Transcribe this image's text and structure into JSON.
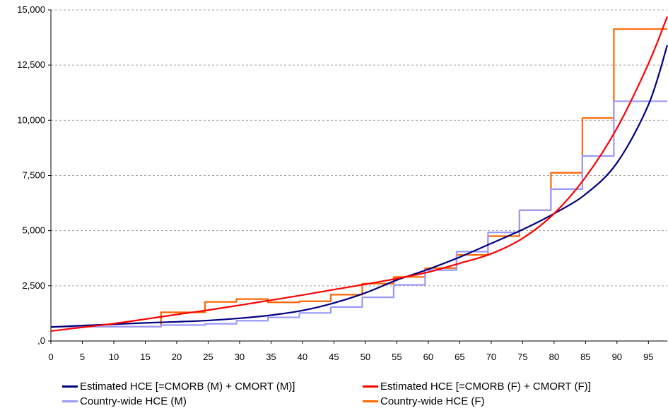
{
  "chart_data": {
    "type": "line",
    "title": "",
    "xlabel": "",
    "ylabel": "",
    "xlim": [
      0,
      98
    ],
    "ylim": [
      0,
      15000
    ],
    "x_ticks": [
      0,
      5,
      10,
      15,
      20,
      25,
      30,
      35,
      40,
      45,
      50,
      55,
      60,
      65,
      70,
      75,
      80,
      85,
      90,
      95
    ],
    "y_ticks": [
      0,
      2500,
      5000,
      7500,
      10000,
      12500,
      15000
    ],
    "y_tick_labels": [
      ",0",
      "2,500",
      "5,000",
      "7,500",
      "10,000",
      "12,500",
      "15,000"
    ],
    "grid": "horizontal dashed",
    "legend_position": "bottom",
    "series": [
      {
        "name": "Estimated HCE [=CMORB (M) + CMORT (M)]",
        "color": "#000080",
        "style": "smooth",
        "points": [
          [
            0,
            630
          ],
          [
            5,
            700
          ],
          [
            10,
            760
          ],
          [
            15,
            820
          ],
          [
            20,
            870
          ],
          [
            25,
            930
          ],
          [
            30,
            1030
          ],
          [
            35,
            1170
          ],
          [
            40,
            1380
          ],
          [
            45,
            1720
          ],
          [
            50,
            2180
          ],
          [
            55,
            2760
          ],
          [
            60,
            3250
          ],
          [
            65,
            3800
          ],
          [
            70,
            4420
          ],
          [
            75,
            5050
          ],
          [
            80,
            5770
          ],
          [
            85,
            6650
          ],
          [
            90,
            8070
          ],
          [
            95,
            10700
          ],
          [
            98,
            13400
          ]
        ]
      },
      {
        "name": "Estimated HCE [=CMORB (F) + CMORT (F)]",
        "color": "#ff0000",
        "style": "smooth",
        "points": [
          [
            0,
            450
          ],
          [
            5,
            620
          ],
          [
            10,
            790
          ],
          [
            15,
            990
          ],
          [
            20,
            1200
          ],
          [
            25,
            1400
          ],
          [
            30,
            1620
          ],
          [
            35,
            1850
          ],
          [
            40,
            2080
          ],
          [
            45,
            2330
          ],
          [
            50,
            2570
          ],
          [
            55,
            2830
          ],
          [
            60,
            3120
          ],
          [
            65,
            3520
          ],
          [
            70,
            3950
          ],
          [
            75,
            4650
          ],
          [
            80,
            5770
          ],
          [
            85,
            7420
          ],
          [
            90,
            9640
          ],
          [
            95,
            12560
          ],
          [
            98,
            14700
          ]
        ]
      },
      {
        "name": "Country-wide HCE (M)",
        "color": "#9999ff",
        "style": "step",
        "points": [
          [
            0,
            650
          ],
          [
            17.5,
            650
          ],
          [
            17.5,
            720
          ],
          [
            24.5,
            720
          ],
          [
            24.5,
            780
          ],
          [
            29.5,
            780
          ],
          [
            29.5,
            920
          ],
          [
            34.5,
            920
          ],
          [
            34.5,
            1070
          ],
          [
            39.5,
            1070
          ],
          [
            39.5,
            1270
          ],
          [
            44.5,
            1270
          ],
          [
            44.5,
            1540
          ],
          [
            49.5,
            1540
          ],
          [
            49.5,
            1980
          ],
          [
            54.5,
            1980
          ],
          [
            54.5,
            2540
          ],
          [
            59.5,
            2540
          ],
          [
            59.5,
            3210
          ],
          [
            64.5,
            3210
          ],
          [
            64.5,
            4050
          ],
          [
            69.5,
            4050
          ],
          [
            69.5,
            4920
          ],
          [
            74.5,
            4920
          ],
          [
            74.5,
            5920
          ],
          [
            79.5,
            5920
          ],
          [
            79.5,
            6880
          ],
          [
            84.5,
            6880
          ],
          [
            84.5,
            8380
          ],
          [
            89.5,
            8380
          ],
          [
            89.5,
            10860
          ],
          [
            98,
            10860
          ]
        ]
      },
      {
        "name": "Country-wide HCE (F)",
        "color": "#ff6600",
        "style": "step",
        "points": [
          [
            0,
            650
          ],
          [
            17.5,
            650
          ],
          [
            17.5,
            1300
          ],
          [
            24.5,
            1300
          ],
          [
            24.5,
            1770
          ],
          [
            29.5,
            1770
          ],
          [
            29.5,
            1900
          ],
          [
            34.5,
            1900
          ],
          [
            34.5,
            1750
          ],
          [
            39.5,
            1750
          ],
          [
            39.5,
            1800
          ],
          [
            44.5,
            1800
          ],
          [
            44.5,
            2100
          ],
          [
            49.5,
            2100
          ],
          [
            49.5,
            2600
          ],
          [
            54.5,
            2600
          ],
          [
            54.5,
            2900
          ],
          [
            59.5,
            2900
          ],
          [
            59.5,
            3300
          ],
          [
            64.5,
            3300
          ],
          [
            64.5,
            3900
          ],
          [
            69.5,
            3900
          ],
          [
            69.5,
            4750
          ],
          [
            74.5,
            4750
          ],
          [
            74.5,
            5920
          ],
          [
            79.5,
            5920
          ],
          [
            79.5,
            7620
          ],
          [
            84.5,
            7620
          ],
          [
            84.5,
            10100
          ],
          [
            89.5,
            10100
          ],
          [
            89.5,
            14130
          ],
          [
            98,
            14130
          ]
        ]
      }
    ]
  }
}
